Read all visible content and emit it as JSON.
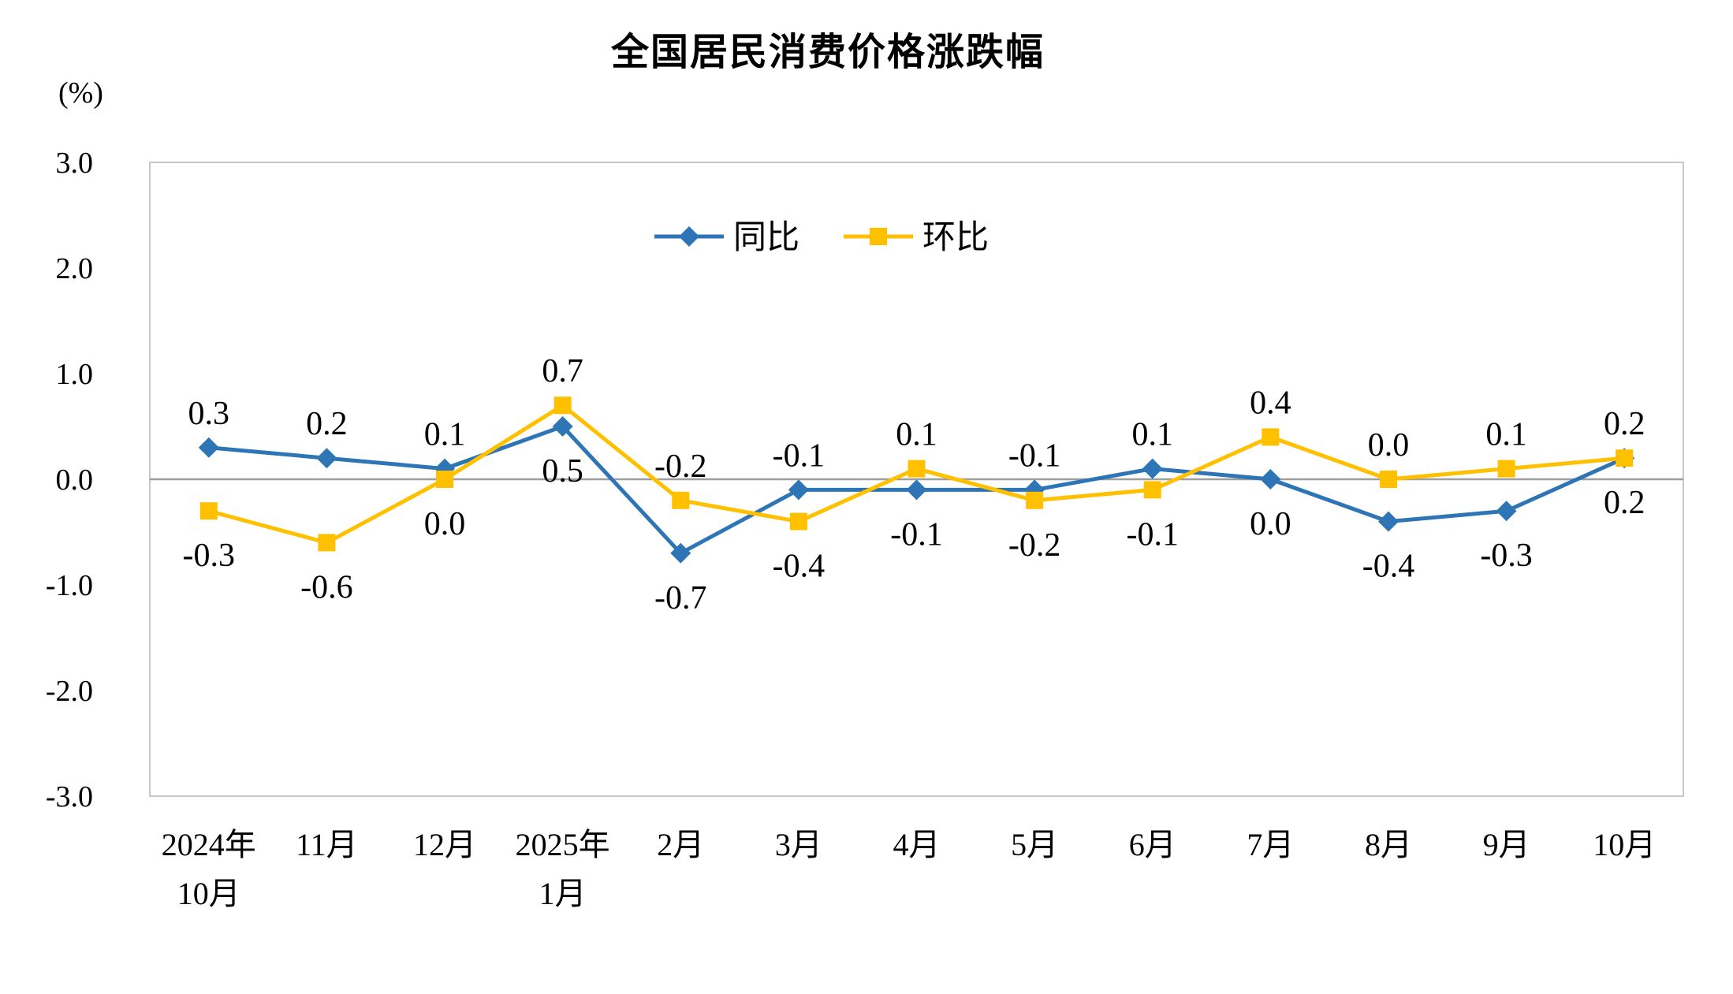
{
  "chart_data": {
    "type": "line",
    "title": "全国居民消费价格涨跌幅",
    "ylabel": "(%)",
    "xlabel": "",
    "ylim": [
      -3.0,
      3.0
    ],
    "ytick_interval": 1.0,
    "yticks": [
      3.0,
      2.0,
      1.0,
      0.0,
      -1.0,
      -2.0,
      -3.0
    ],
    "ytick_labels": [
      "3.0",
      "2.0",
      "1.0",
      "0.0",
      "-1.0",
      "-2.0",
      "-3.0"
    ],
    "categories": [
      "2024年10月",
      "11月",
      "12月",
      "2025年1月",
      "2月",
      "3月",
      "4月",
      "5月",
      "6月",
      "7月",
      "8月",
      "9月",
      "10月"
    ],
    "category_lines": [
      [
        "2024年",
        "10月"
      ],
      [
        "11月"
      ],
      [
        "12月"
      ],
      [
        "2025年",
        "1月"
      ],
      [
        "2月"
      ],
      [
        "3月"
      ],
      [
        "4月"
      ],
      [
        "5月"
      ],
      [
        "6月"
      ],
      [
        "7月"
      ],
      [
        "8月"
      ],
      [
        "9月"
      ],
      [
        "10月"
      ]
    ],
    "series": [
      {
        "name": "同比",
        "marker": "diamond",
        "color": "#2E75B6",
        "values": [
          0.3,
          0.2,
          0.1,
          0.5,
          -0.7,
          -0.1,
          -0.1,
          -0.1,
          0.1,
          0.0,
          -0.4,
          -0.3,
          0.2
        ]
      },
      {
        "name": "环比",
        "marker": "square",
        "color": "#FFC000",
        "values": [
          -0.3,
          -0.6,
          0.0,
          0.7,
          -0.2,
          -0.4,
          0.1,
          -0.2,
          -0.1,
          0.4,
          0.0,
          0.1,
          0.2
        ]
      }
    ],
    "legend_position": "top-center-inside",
    "grid": false,
    "data_labels": true,
    "colors": {
      "axis_border": "#C8C8C8",
      "zero_line": "#9E9E9E",
      "text": "#000000",
      "background": "#FFFFFF"
    }
  }
}
